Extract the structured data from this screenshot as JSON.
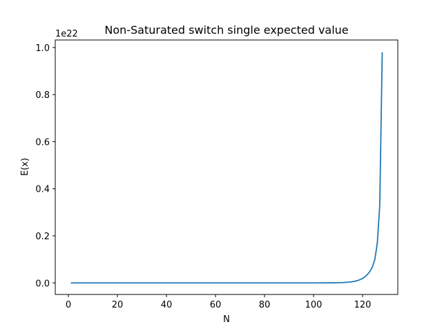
{
  "chart_data": {
    "type": "line",
    "title": "Non-Saturated switch single expected value",
    "xlabel": "N",
    "ylabel": "E(x)",
    "y_offset_text": "1e22",
    "xlim": [
      -5.35,
      134.35
    ],
    "ylim": [
      -0.049,
      1.032
    ],
    "x_ticks": [
      0,
      20,
      40,
      60,
      80,
      100,
      120
    ],
    "y_ticks": [
      0.0,
      0.2,
      0.4,
      0.6,
      0.8,
      1.0
    ],
    "x_tick_labels": [
      "0",
      "20",
      "40",
      "60",
      "80",
      "100",
      "120"
    ],
    "y_tick_labels": [
      "0.0",
      "0.2",
      "0.4",
      "0.6",
      "0.8",
      "1.0"
    ],
    "grid": false,
    "legend": "none",
    "series": [
      {
        "color": "#1f77b4",
        "x": [
          1,
          10,
          20,
          30,
          40,
          50,
          60,
          70,
          80,
          90,
          100,
          105,
          108,
          110,
          112,
          114,
          115,
          116,
          117,
          118,
          119,
          120,
          121,
          122,
          123,
          124,
          125,
          126,
          127,
          128
        ],
        "y": [
          0,
          0,
          0,
          0,
          0,
          0,
          0,
          0,
          0,
          0,
          8e-05,
          0.0003,
          0.0006,
          0.0009,
          0.0016,
          0.0029,
          0.004,
          0.0055,
          0.0075,
          0.0103,
          0.0141,
          0.0193,
          0.0264,
          0.0361,
          0.0494,
          0.0677,
          0.1,
          0.17,
          0.33,
          0.98
        ]
      }
    ]
  }
}
